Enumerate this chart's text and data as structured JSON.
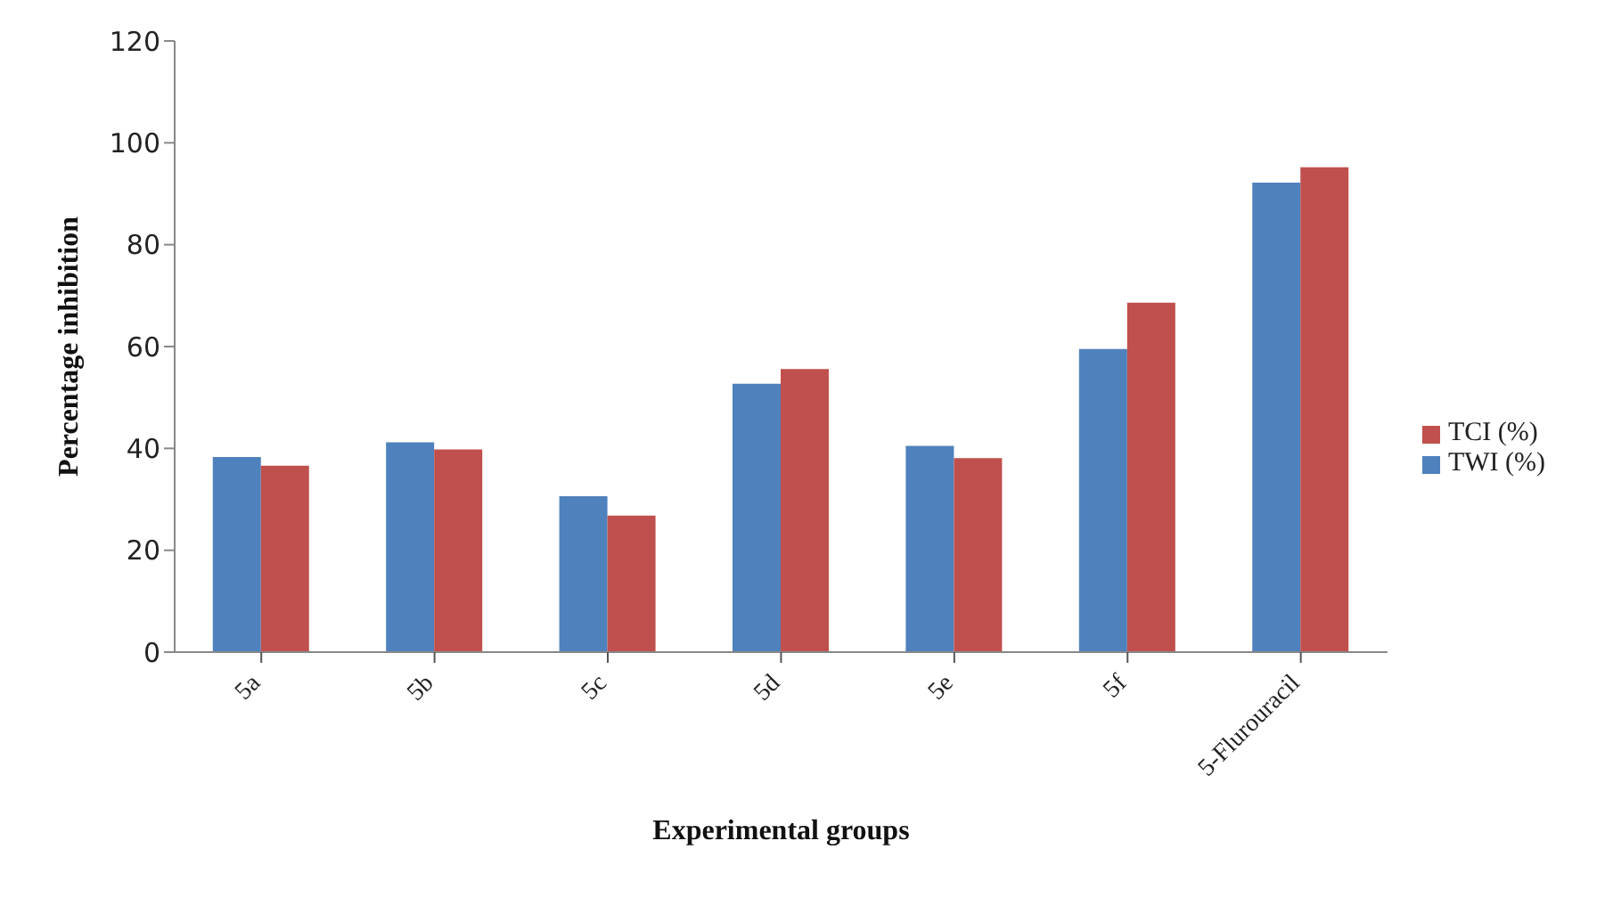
{
  "chart_data": {
    "type": "bar",
    "xlabel": "Experimental groups",
    "ylabel": "Percentage inhibition",
    "categories": [
      "5a",
      "5b",
      "5c",
      "5d",
      "5e",
      "5f",
      "5-Flurouracil"
    ],
    "series": [
      {
        "name": "TWI (%)",
        "color": "#4f81bd",
        "values": [
          38.3,
          41.2,
          30.6,
          52.7,
          40.5,
          59.5,
          92.2
        ]
      },
      {
        "name": "TCI (%)",
        "color": "#c0504d",
        "values": [
          36.6,
          39.8,
          26.8,
          55.6,
          38.1,
          68.6,
          95.2
        ]
      }
    ],
    "ylim": [
      0,
      120
    ],
    "yticks": [
      0,
      20,
      40,
      60,
      80,
      100,
      120
    ],
    "grid": false,
    "legend": "right"
  }
}
